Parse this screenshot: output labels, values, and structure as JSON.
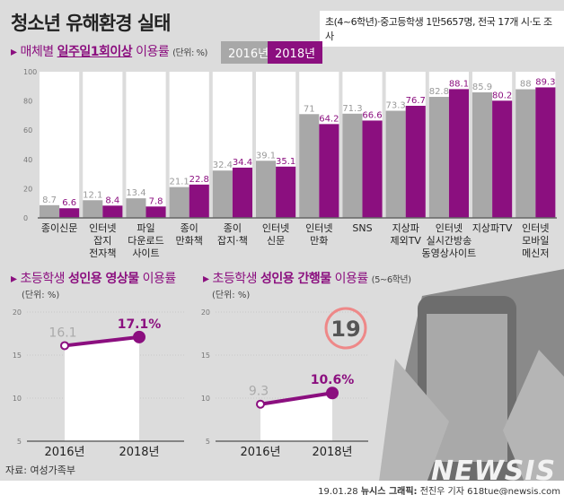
{
  "title": "청소년 유해환경 실태",
  "survey_note": "초(4~6학년)·중고등학생 1만5657명, 전국 17개 시·도 조사",
  "section1": {
    "prefix": "매체별",
    "highlight": "일주일1회이상",
    "suffix": "이용률",
    "unit": "(단위: %)"
  },
  "section2": {
    "prefix": "초등학생",
    "highlight": "성인용 영상물",
    "suffix": "이용률",
    "unit": "(단위: %)"
  },
  "section3": {
    "prefix": "초등학생",
    "highlight": "성인용 간행물",
    "suffix": "이용률",
    "note": "(5~6학년)",
    "unit": "(단위: %)"
  },
  "age_badge": "19",
  "source": "자료: 여성가족부",
  "credit_date": "19.01.28",
  "credit_org": "뉴시스 그래픽:",
  "credit_author": "전진우 기자 618tue@newsis.com",
  "watermark": "NEWSIS",
  "colors": {
    "y2016": "#a8a8a8",
    "y2018": "#8b0f7f",
    "background": "#dcdcdc"
  },
  "chart_data": [
    {
      "type": "bar",
      "ylim": [
        0,
        100
      ],
      "yticks": [
        0,
        20,
        40,
        60,
        80,
        100
      ],
      "legend_position": "top",
      "categories": [
        "종이신문",
        "인터넷 잡지 전자책",
        "파일 다운로드 사이트",
        "종이 만화책",
        "종이 잡지·책",
        "인터넷 신문",
        "인터넷 만화",
        "SNS",
        "지상파 제외TV",
        "인터넷 실시간방송 동영상사이트",
        "지상파TV",
        "인터넷 모바일 메신저"
      ],
      "series": [
        {
          "name": "2016년",
          "values": [
            8.7,
            12.1,
            13.4,
            21.1,
            32.4,
            39.1,
            71,
            71.3,
            73.3,
            82.8,
            85.9,
            88
          ]
        },
        {
          "name": "2018년",
          "values": [
            6.6,
            8.4,
            7.8,
            22.8,
            34.4,
            35.1,
            64.2,
            66.6,
            76.7,
            88.1,
            80.2,
            89.3
          ]
        }
      ]
    },
    {
      "type": "line",
      "ylim": [
        5,
        20
      ],
      "yticks": [
        5,
        10,
        15,
        20
      ],
      "categories": [
        "2016년",
        "2018년"
      ],
      "values": [
        16.1,
        17.1
      ],
      "labels": [
        "16.1",
        "17.1%"
      ]
    },
    {
      "type": "line",
      "ylim": [
        5,
        20
      ],
      "yticks": [
        5,
        10,
        15,
        20
      ],
      "categories": [
        "2016년",
        "2018년"
      ],
      "values": [
        9.3,
        10.6
      ],
      "labels": [
        "9.3",
        "10.6%"
      ]
    }
  ]
}
